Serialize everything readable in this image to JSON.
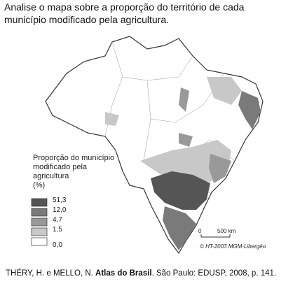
{
  "question": {
    "line1": "Analise o mapa sobre a proporção do território de cada",
    "line2": "município modificado pela agricultura."
  },
  "legend": {
    "title_lines": [
      "Proporção do município",
      "modificado pela",
      "agricultura",
      "(%)"
    ],
    "labels": [
      "51,3",
      "12,0",
      "4,7",
      "1,5",
      "0,0"
    ]
  },
  "scale": {
    "start": "0",
    "end": "500 km"
  },
  "credit": "© HT-2003 MGM-Libergéo",
  "citation": {
    "authors": "THÉRY, H. e MELLO, N. ",
    "work": "Atlas do Brasil",
    "rest": ". São Paulo: EDUSP, 2008, p. 141."
  }
}
